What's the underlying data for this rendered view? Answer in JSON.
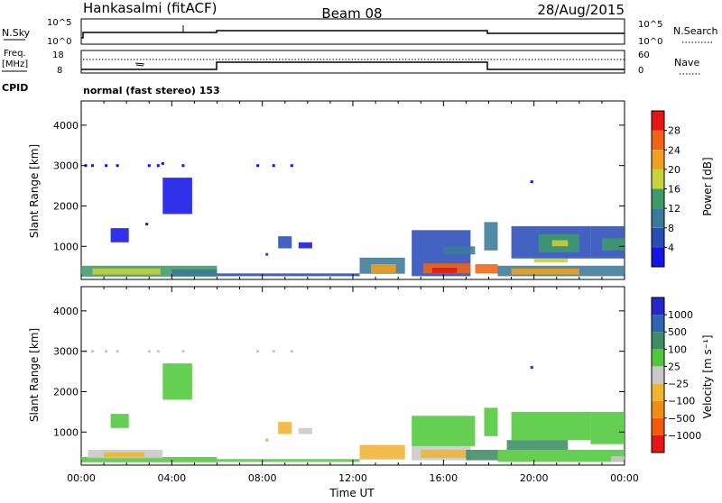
{
  "header": {
    "station": "Hankasalmi (fitACF)",
    "beam": "Beam 08",
    "date": "28/Aug/2015"
  },
  "noise_panel": {
    "left_label": "N.Sky",
    "left_top": "10^5",
    "left_bottom": "10^0",
    "right_top": "10^5",
    "right_bottom": "10^0",
    "right_label": "N.Search"
  },
  "freq_panel": {
    "left_label_1": "Freq.",
    "left_label_2": "[MHz]",
    "left_top": "18",
    "left_bottom": "8",
    "right_top": "60",
    "right_bottom": "0",
    "right_label": "Nave",
    "cpid_label": "CPID"
  },
  "mode_text": "normal (fast stereo) 153",
  "chart_data": [
    {
      "type": "heatmap",
      "name": "power-panel",
      "ylabel": "Slant Range [km]",
      "ylim": [
        180,
        4600
      ],
      "yticks": [
        1000,
        2000,
        3000,
        4000
      ],
      "xlim": [
        0,
        24
      ],
      "colorbar": {
        "label": "Power [dB]",
        "ticks": [
          "4",
          "8",
          "12",
          "16",
          "20",
          "24",
          "28"
        ],
        "colors": [
          "#1414e6",
          "#2a4cb8",
          "#3a7a9a",
          "#3f9a6a",
          "#c8d23a",
          "#f0a01e",
          "#f06414",
          "#e61414"
        ]
      },
      "regions": [
        {
          "x0": 0.0,
          "x1": 6.0,
          "y0": 250,
          "y1": 520,
          "level": 4
        },
        {
          "x0": 0.5,
          "x1": 3.5,
          "y0": 300,
          "y1": 450,
          "level": 5
        },
        {
          "x0": 4.0,
          "x1": 6.0,
          "y0": 260,
          "y1": 430,
          "level": 3
        },
        {
          "x0": 6.0,
          "x1": 12.3,
          "y0": 260,
          "y1": 330,
          "level": 2
        },
        {
          "x0": 1.3,
          "x1": 2.1,
          "y0": 1100,
          "y1": 1450,
          "level": 1
        },
        {
          "x0": 3.6,
          "x1": 4.9,
          "y0": 1800,
          "y1": 2700,
          "level": 1
        },
        {
          "x0": 8.7,
          "x1": 9.3,
          "y0": 950,
          "y1": 1250,
          "level": 2
        },
        {
          "x0": 9.6,
          "x1": 10.2,
          "y0": 950,
          "y1": 1100,
          "level": 1
        },
        {
          "x0": 12.3,
          "x1": 14.3,
          "y0": 320,
          "y1": 720,
          "level": 3
        },
        {
          "x0": 12.8,
          "x1": 13.9,
          "y0": 340,
          "y1": 560,
          "level": 6
        },
        {
          "x0": 14.6,
          "x1": 17.2,
          "y0": 260,
          "y1": 1400,
          "level": 2
        },
        {
          "x0": 15.1,
          "x1": 17.2,
          "y0": 330,
          "y1": 580,
          "level": 7
        },
        {
          "x0": 15.5,
          "x1": 16.6,
          "y0": 340,
          "y1": 470,
          "level": 8
        },
        {
          "x0": 16.0,
          "x1": 17.4,
          "y0": 800,
          "y1": 1000,
          "level": 3
        },
        {
          "x0": 17.4,
          "x1": 18.4,
          "y0": 330,
          "y1": 560,
          "level": 7
        },
        {
          "x0": 17.8,
          "x1": 18.4,
          "y0": 900,
          "y1": 1600,
          "level": 3
        },
        {
          "x0": 18.4,
          "x1": 24.0,
          "y0": 260,
          "y1": 520,
          "level": 3
        },
        {
          "x0": 19.0,
          "x1": 22.0,
          "y0": 300,
          "y1": 450,
          "level": 6
        },
        {
          "x0": 20.0,
          "x1": 21.5,
          "y0": 600,
          "y1": 700,
          "level": 5
        },
        {
          "x0": 19.0,
          "x1": 22.5,
          "y0": 700,
          "y1": 1500,
          "level": 2
        },
        {
          "x0": 20.2,
          "x1": 22.0,
          "y0": 850,
          "y1": 1300,
          "level": 4
        },
        {
          "x0": 20.8,
          "x1": 21.5,
          "y0": 1000,
          "y1": 1150,
          "level": 5
        },
        {
          "x0": 22.5,
          "x1": 24.0,
          "y0": 700,
          "y1": 1500,
          "level": 2
        },
        {
          "x0": 23.0,
          "x1": 24.0,
          "y0": 900,
          "y1": 1200,
          "level": 4
        }
      ],
      "points": [
        {
          "x": 0.2,
          "y": 3000,
          "level": 1
        },
        {
          "x": 0.5,
          "y": 3000,
          "level": 1
        },
        {
          "x": 1.1,
          "y": 3000,
          "level": 1
        },
        {
          "x": 1.6,
          "y": 3000,
          "level": 1
        },
        {
          "x": 3.0,
          "y": 3000,
          "level": 1
        },
        {
          "x": 3.4,
          "y": 3000,
          "level": 1
        },
        {
          "x": 3.6,
          "y": 3050,
          "level": 1
        },
        {
          "x": 4.5,
          "y": 3000,
          "level": 1
        },
        {
          "x": 7.8,
          "y": 3000,
          "level": 1
        },
        {
          "x": 8.5,
          "y": 3000,
          "level": 1
        },
        {
          "x": 9.3,
          "y": 3000,
          "level": 1
        },
        {
          "x": 2.9,
          "y": 1550,
          "level": 1
        },
        {
          "x": 19.9,
          "y": 2600,
          "level": 1
        },
        {
          "x": 8.2,
          "y": 800,
          "level": 2
        }
      ]
    },
    {
      "type": "heatmap",
      "name": "velocity-panel",
      "ylabel": "Slant Range [km]",
      "xlabel": "Time UT",
      "ylim": [
        180,
        4600
      ],
      "yticks": [
        1000,
        2000,
        3000,
        4000
      ],
      "xlim": [
        0,
        24
      ],
      "xticks": [
        "00:00",
        "04:00",
        "08:00",
        "12:00",
        "16:00",
        "20:00",
        "00:00"
      ],
      "colorbar": {
        "label": "Velocity [m s⁻¹]",
        "ticks": [
          "1000",
          "500",
          "100",
          "25",
          "−25",
          "−100",
          "−500",
          "−1000"
        ],
        "colors": [
          "#2828c8",
          "#3264b4",
          "#3c8c64",
          "#50c83c",
          "#c8c8c8",
          "#f0b432",
          "#f08c14",
          "#f05a0a",
          "#e61414"
        ]
      },
      "regions": [
        {
          "x0": 0.0,
          "x1": 6.0,
          "y0": 250,
          "y1": 380,
          "level": 4
        },
        {
          "x0": 0.3,
          "x1": 3.6,
          "y0": 350,
          "y1": 560,
          "level": 5
        },
        {
          "x0": 1.0,
          "x1": 2.8,
          "y0": 380,
          "y1": 500,
          "level": 6
        },
        {
          "x0": 6.0,
          "x1": 12.3,
          "y0": 260,
          "y1": 330,
          "level": 4
        },
        {
          "x0": 3.6,
          "x1": 4.9,
          "y0": 1800,
          "y1": 2700,
          "level": 4
        },
        {
          "x0": 1.3,
          "x1": 2.1,
          "y0": 1100,
          "y1": 1450,
          "level": 4
        },
        {
          "x0": 8.7,
          "x1": 9.3,
          "y0": 950,
          "y1": 1250,
          "level": 6
        },
        {
          "x0": 9.6,
          "x1": 10.2,
          "y0": 950,
          "y1": 1100,
          "level": 5
        },
        {
          "x0": 12.3,
          "x1": 14.3,
          "y0": 320,
          "y1": 680,
          "level": 6
        },
        {
          "x0": 14.6,
          "x1": 17.2,
          "y0": 300,
          "y1": 650,
          "level": 5
        },
        {
          "x0": 15.0,
          "x1": 17.0,
          "y0": 360,
          "y1": 560,
          "level": 6
        },
        {
          "x0": 14.6,
          "x1": 17.4,
          "y0": 650,
          "y1": 1400,
          "level": 4
        },
        {
          "x0": 17.0,
          "x1": 18.4,
          "y0": 300,
          "y1": 560,
          "level": 3
        },
        {
          "x0": 17.8,
          "x1": 18.4,
          "y0": 900,
          "y1": 1600,
          "level": 4
        },
        {
          "x0": 18.4,
          "x1": 24.0,
          "y0": 260,
          "y1": 560,
          "level": 4
        },
        {
          "x0": 18.8,
          "x1": 21.5,
          "y0": 560,
          "y1": 800,
          "level": 3
        },
        {
          "x0": 19.0,
          "x1": 22.5,
          "y0": 800,
          "y1": 1500,
          "level": 4
        },
        {
          "x0": 22.5,
          "x1": 24.0,
          "y0": 700,
          "y1": 1500,
          "level": 4
        },
        {
          "x0": 23.4,
          "x1": 24.0,
          "y0": 260,
          "y1": 400,
          "level": 5
        }
      ],
      "points": [
        {
          "x": 0.2,
          "y": 3000,
          "level": 5
        },
        {
          "x": 0.5,
          "y": 3000,
          "level": 5
        },
        {
          "x": 1.1,
          "y": 3000,
          "level": 5
        },
        {
          "x": 1.6,
          "y": 3000,
          "level": 5
        },
        {
          "x": 3.0,
          "y": 3000,
          "level": 5
        },
        {
          "x": 3.4,
          "y": 3000,
          "level": 5
        },
        {
          "x": 4.5,
          "y": 3000,
          "level": 5
        },
        {
          "x": 7.8,
          "y": 3000,
          "level": 5
        },
        {
          "x": 8.5,
          "y": 3000,
          "level": 5
        },
        {
          "x": 9.3,
          "y": 3000,
          "level": 5
        },
        {
          "x": 19.9,
          "y": 2600,
          "level": 1
        },
        {
          "x": 8.2,
          "y": 800,
          "level": 6
        }
      ]
    }
  ]
}
